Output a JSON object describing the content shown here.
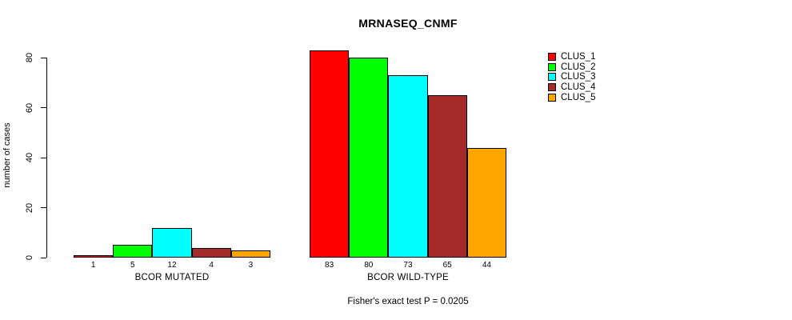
{
  "chart_data": {
    "type": "bar",
    "title": "MRNASEQ_CNMF",
    "ylabel": "number of cases",
    "ylim": [
      0,
      80
    ],
    "yticks": [
      0,
      20,
      40,
      60,
      80
    ],
    "grid": false,
    "legend_position": "right",
    "groups": [
      {
        "label": "BCOR MUTATED",
        "values": [
          1,
          5,
          12,
          4,
          3
        ]
      },
      {
        "label": "BCOR WILD-TYPE",
        "values": [
          83,
          80,
          73,
          65,
          44
        ]
      }
    ],
    "series_colors": [
      "#FF0000",
      "#00FF00",
      "#00FFFF",
      "#A52A2A",
      "#FFA500"
    ],
    "legend": [
      {
        "label": "CLUS_1",
        "color": "#FF0000"
      },
      {
        "label": "CLUS_2",
        "color": "#00FF00"
      },
      {
        "label": "CLUS_3",
        "color": "#00FFFF"
      },
      {
        "label": "CLUS_4",
        "color": "#A52A2A"
      },
      {
        "label": "CLUS_5",
        "color": "#FFA500"
      }
    ],
    "annotation": "Fisher's exact test P = 0.0205"
  }
}
